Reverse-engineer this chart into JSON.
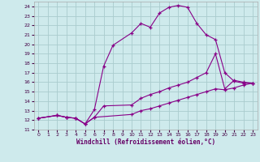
{
  "xlabel": "Windchill (Refroidissement éolien,°C)",
  "bg_color": "#ceeaec",
  "grid_color": "#aaccce",
  "line_color": "#880088",
  "xlim": [
    -0.5,
    23.5
  ],
  "ylim": [
    11,
    24.5
  ],
  "xticks": [
    0,
    1,
    2,
    3,
    4,
    5,
    6,
    7,
    8,
    9,
    10,
    11,
    12,
    13,
    14,
    15,
    16,
    17,
    18,
    19,
    20,
    21,
    22,
    23
  ],
  "yticks": [
    11,
    12,
    13,
    14,
    15,
    16,
    17,
    18,
    19,
    20,
    21,
    22,
    23,
    24
  ],
  "series": [
    {
      "x": [
        0,
        2,
        3,
        4,
        5,
        6,
        7,
        8,
        10,
        11,
        12,
        13,
        14,
        15,
        16,
        17,
        18,
        19,
        20,
        21,
        22,
        23
      ],
      "y": [
        12.2,
        12.5,
        12.3,
        12.2,
        11.6,
        13.1,
        17.7,
        19.9,
        21.2,
        22.2,
        21.8,
        23.3,
        23.9,
        24.1,
        23.9,
        22.2,
        21.0,
        20.5,
        17.0,
        16.1,
        15.9,
        15.9
      ]
    },
    {
      "x": [
        0,
        2,
        3,
        4,
        5,
        6,
        7,
        10,
        11,
        12,
        13,
        14,
        15,
        16,
        17,
        18,
        19,
        20,
        21,
        22,
        23
      ],
      "y": [
        12.2,
        12.5,
        12.3,
        12.2,
        11.6,
        12.3,
        13.5,
        13.6,
        14.3,
        14.7,
        15.0,
        15.4,
        15.7,
        16.0,
        16.5,
        17.0,
        19.0,
        15.3,
        16.2,
        16.0,
        15.9
      ]
    },
    {
      "x": [
        0,
        2,
        3,
        4,
        5,
        6,
        10,
        11,
        12,
        13,
        14,
        15,
        16,
        17,
        18,
        19,
        20,
        21,
        22,
        23
      ],
      "y": [
        12.2,
        12.5,
        12.3,
        12.2,
        11.6,
        12.3,
        12.6,
        13.0,
        13.2,
        13.5,
        13.8,
        14.1,
        14.4,
        14.7,
        15.0,
        15.3,
        15.2,
        15.4,
        15.7,
        15.9
      ]
    }
  ]
}
